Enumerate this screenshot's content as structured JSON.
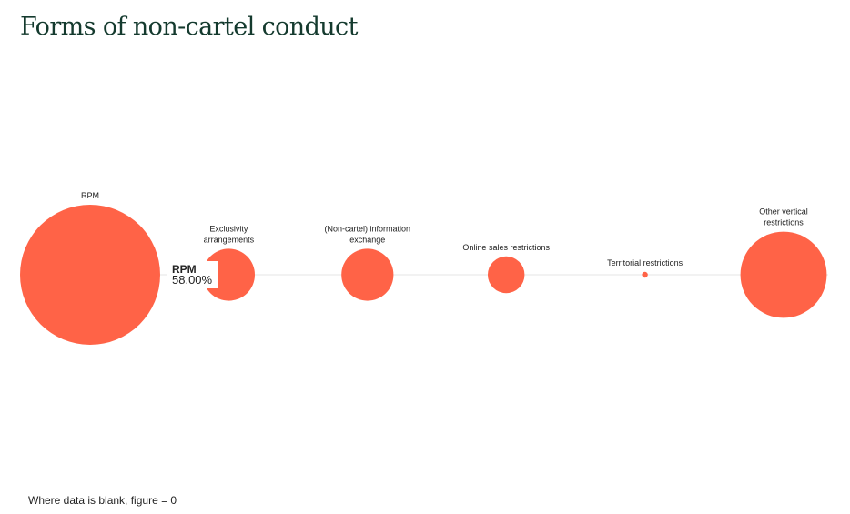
{
  "title": "Forms of non-cartel conduct",
  "footnote": "Where data is blank, figure = 0",
  "tooltip": {
    "label": "RPM",
    "value": "58.00%"
  },
  "colors": {
    "bubble": "#ff6347",
    "baseline": "#e6e6e6",
    "title": "#143a2e"
  },
  "chart_data": {
    "type": "bubble",
    "categories": [
      "RPM",
      "Exclusivity arrangements",
      "(Non-cartel) information exchange",
      "Online sales restrictions",
      "Territorial restrictions",
      "Other vertical restrictions"
    ],
    "values": [
      58.0,
      8.0,
      8.0,
      4.0,
      0.1,
      22.0
    ],
    "unit": "%",
    "legend": "none",
    "grid": false
  }
}
